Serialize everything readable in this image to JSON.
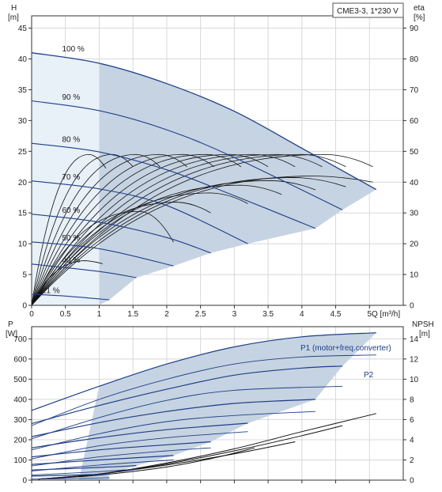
{
  "chart_data": [
    {
      "type": "line",
      "id": "head",
      "badge": "CME3-3, 1*230 V",
      "y_title": "H",
      "y_unit": "[m]",
      "y2_title": "eta",
      "y2_unit": "[%]",
      "x_label": "Q [m³/h]",
      "xlim": [
        0,
        5.5
      ],
      "ylim": [
        0,
        47
      ],
      "y2lim": [
        0,
        94
      ],
      "x_ticks": [
        "0",
        "0.5",
        "1",
        "1.5",
        "2",
        "2.5",
        "3",
        "3.5",
        "4",
        "4.5",
        "5"
      ],
      "y_ticks": [
        "0",
        "5",
        "10",
        "15",
        "20",
        "25",
        "30",
        "35",
        "40",
        "45"
      ],
      "y2_ticks": [
        "0",
        "10",
        "20",
        "30",
        "40",
        "50",
        "60",
        "70",
        "80",
        "90"
      ],
      "grid": true,
      "colors": {
        "speed": "#1f3f87",
        "eta": "#111111",
        "area": "#c6d3e2",
        "area_light": "#e8f0f8"
      },
      "speed_curves": [
        {
          "name": "100 %",
          "points": [
            [
              0,
              41
            ],
            [
              1,
              39.3
            ],
            [
              2,
              36
            ],
            [
              3,
              31.5
            ],
            [
              4,
              25.5
            ],
            [
              5.1,
              18.8
            ]
          ]
        },
        {
          "name": "90 %",
          "points": [
            [
              0,
              33.2
            ],
            [
              1,
              31.6
            ],
            [
              2,
              28.5
            ],
            [
              3,
              24
            ],
            [
              4.6,
              15.5
            ]
          ]
        },
        {
          "name": "80 %",
          "points": [
            [
              0,
              26.3
            ],
            [
              1,
              24.9
            ],
            [
              2,
              22
            ],
            [
              3,
              17.8
            ],
            [
              4.2,
              12.5
            ]
          ]
        },
        {
          "name": "70 %",
          "points": [
            [
              0,
              20.2
            ],
            [
              1,
              18.9
            ],
            [
              2,
              16.2
            ],
            [
              3.2,
              10
            ]
          ]
        },
        {
          "name": "60 %",
          "points": [
            [
              0,
              14.8
            ],
            [
              1,
              13.5
            ],
            [
              2,
              11
            ],
            [
              2.65,
              8.5
            ]
          ]
        },
        {
          "name": "50 %",
          "points": [
            [
              0,
              10.3
            ],
            [
              1,
              9.2
            ],
            [
              2.1,
              6.4
            ]
          ]
        },
        {
          "name": "40 %",
          "points": [
            [
              0,
              6.7
            ],
            [
              1,
              5.5
            ],
            [
              1.55,
              4.5
            ]
          ]
        },
        {
          "name": "21 %",
          "points": [
            [
              0,
              1.8
            ],
            [
              0.5,
              1.5
            ],
            [
              1.15,
              0.9
            ]
          ]
        }
      ],
      "eta_curves": [
        {
          "peak": [
            0.85,
            49
          ],
          "end": [
            1.1,
            44.5
          ]
        },
        {
          "peak": [
            1.2,
            49
          ],
          "end": [
            1.5,
            45
          ]
        },
        {
          "peak": [
            1.55,
            49
          ],
          "end": [
            1.9,
            45
          ]
        },
        {
          "peak": [
            1.9,
            49
          ],
          "end": [
            2.3,
            45
          ]
        },
        {
          "peak": [
            2.25,
            49
          ],
          "end": [
            2.7,
            45
          ]
        },
        {
          "peak": [
            2.6,
            49
          ],
          "end": [
            3.1,
            45
          ]
        },
        {
          "peak": [
            2.95,
            49
          ],
          "end": [
            3.5,
            45
          ]
        },
        {
          "peak": [
            3.3,
            49
          ],
          "end": [
            3.9,
            45
          ]
        },
        {
          "peak": [
            3.65,
            49
          ],
          "end": [
            4.3,
            45
          ]
        },
        {
          "peak": [
            4.0,
            49
          ],
          "end": [
            4.65,
            45
          ]
        },
        {
          "peak": [
            4.35,
            49
          ],
          "end": [
            5.05,
            45
          ]
        },
        {
          "peak": [
            0.8,
            14.5
          ],
          "end": [
            1.05,
            13.5
          ]
        },
        {
          "peak": [
            1.6,
            30.5
          ],
          "end": [
            2.1,
            20.5
          ]
        },
        {
          "peak": [
            2.15,
            33.5
          ],
          "end": [
            2.65,
            30
          ]
        },
        {
          "peak": [
            2.65,
            36.5
          ],
          "end": [
            3.2,
            33
          ]
        },
        {
          "peak": [
            3.1,
            39
          ],
          "end": [
            3.7,
            36
          ]
        },
        {
          "peak": [
            3.55,
            40.5
          ],
          "end": [
            4.2,
            37.5
          ]
        },
        {
          "peak": [
            3.9,
            41.5
          ],
          "end": [
            4.65,
            38.5
          ]
        },
        {
          "peak": [
            4.2,
            42
          ],
          "end": [
            5.05,
            40
          ]
        }
      ]
    },
    {
      "type": "line",
      "id": "power",
      "y_title": "P",
      "y_unit": "[W]",
      "y2_title": "NPSH",
      "y2_unit": "[m]",
      "xlim": [
        0,
        5.5
      ],
      "ylim": [
        0,
        760
      ],
      "y2lim": [
        0,
        15.2
      ],
      "y_ticks": [
        "0",
        "100",
        "200",
        "300",
        "400",
        "500",
        "600",
        "700"
      ],
      "y2_ticks": [
        "0",
        "2",
        "4",
        "6",
        "8",
        "10",
        "12",
        "14"
      ],
      "grid": true,
      "colors": {
        "p1": "#1f3f87",
        "p2": "#1f3f87",
        "npsh": "#111111",
        "area": "#c6d3e2"
      },
      "p1_label": "P1 (motor+freq.converter)",
      "p2_label": "P2",
      "p1_curves": [
        {
          "points": [
            [
              0,
              345
            ],
            [
              1,
              465
            ],
            [
              2,
              575
            ],
            [
              3,
              660
            ],
            [
              4,
              710
            ],
            [
              5.1,
              730
            ]
          ]
        },
        {
          "points": [
            [
              0,
              280
            ],
            [
              1,
              370
            ],
            [
              2,
              450
            ],
            [
              3,
              520
            ],
            [
              4,
              555
            ],
            [
              4.6,
              565
            ]
          ]
        },
        {
          "points": [
            [
              0,
              215
            ],
            [
              1,
              285
            ],
            [
              2,
              340
            ],
            [
              3,
              380
            ],
            [
              4.2,
              400
            ]
          ]
        },
        {
          "points": [
            [
              0,
              160
            ],
            [
              1,
              210
            ],
            [
              2,
              250
            ],
            [
              3.2,
              282
            ]
          ]
        },
        {
          "points": [
            [
              0,
              115
            ],
            [
              1,
              150
            ],
            [
              2,
              175
            ],
            [
              2.65,
              190
            ]
          ]
        },
        {
          "points": [
            [
              0,
              78
            ],
            [
              1,
              100
            ],
            [
              2.1,
              122
            ]
          ]
        },
        {
          "points": [
            [
              0,
              50
            ],
            [
              1,
              63
            ],
            [
              1.55,
              72
            ]
          ]
        },
        {
          "points": [
            [
              0,
              20
            ],
            [
              0.6,
              25
            ],
            [
              1.15,
              30
            ]
          ]
        }
      ],
      "p2_curves": [
        {
          "points": [
            [
              0,
              270
            ],
            [
              1,
              400
            ],
            [
              2,
              500
            ],
            [
              3,
              575
            ],
            [
              4,
              610
            ],
            [
              5.1,
              620
            ]
          ]
        },
        {
          "points": [
            [
              0,
              205
            ],
            [
              1,
              310
            ],
            [
              2,
              395
            ],
            [
              3,
              445
            ],
            [
              4.6,
              465
            ]
          ]
        },
        {
          "points": [
            [
              0,
              150
            ],
            [
              1,
              230
            ],
            [
              2,
              290
            ],
            [
              3,
              320
            ],
            [
              4.2,
              340
            ]
          ]
        },
        {
          "points": [
            [
              0,
              105
            ],
            [
              1,
              170
            ],
            [
              2,
              210
            ],
            [
              3.2,
              240
            ]
          ]
        },
        {
          "points": [
            [
              0,
              70
            ],
            [
              1,
              115
            ],
            [
              2,
              145
            ],
            [
              2.65,
              160
            ]
          ]
        },
        {
          "points": [
            [
              0,
              45
            ],
            [
              1,
              75
            ],
            [
              2.1,
              100
            ]
          ]
        },
        {
          "points": [
            [
              0,
              25
            ],
            [
              1,
              42
            ],
            [
              1.55,
              55
            ]
          ]
        },
        {
          "points": [
            [
              0,
              5
            ],
            [
              0.6,
              8
            ],
            [
              1.15,
              12
            ]
          ]
        }
      ],
      "npsh_curves": [
        {
          "points": [
            [
              0.1,
              0.1
            ],
            [
              1,
              0.5
            ],
            [
              2,
              1.3
            ],
            [
              2.7,
              2.2
            ],
            [
              3.3,
              3.2
            ]
          ]
        },
        {
          "points": [
            [
              0.1,
              0.1
            ],
            [
              1,
              0.6
            ],
            [
              2,
              1.5
            ],
            [
              3,
              2.6
            ],
            [
              3.9,
              3.8
            ]
          ]
        },
        {
          "points": [
            [
              0.1,
              0.1
            ],
            [
              1,
              0.6
            ],
            [
              2,
              1.6
            ],
            [
              3,
              2.9
            ],
            [
              4,
              4.4
            ],
            [
              4.6,
              5.4
            ]
          ]
        },
        {
          "points": [
            [
              0.1,
              0.1
            ],
            [
              1,
              0.6
            ],
            [
              2,
              1.7
            ],
            [
              3,
              3.1
            ],
            [
              4,
              4.8
            ],
            [
              5.1,
              6.6
            ]
          ]
        }
      ]
    }
  ]
}
